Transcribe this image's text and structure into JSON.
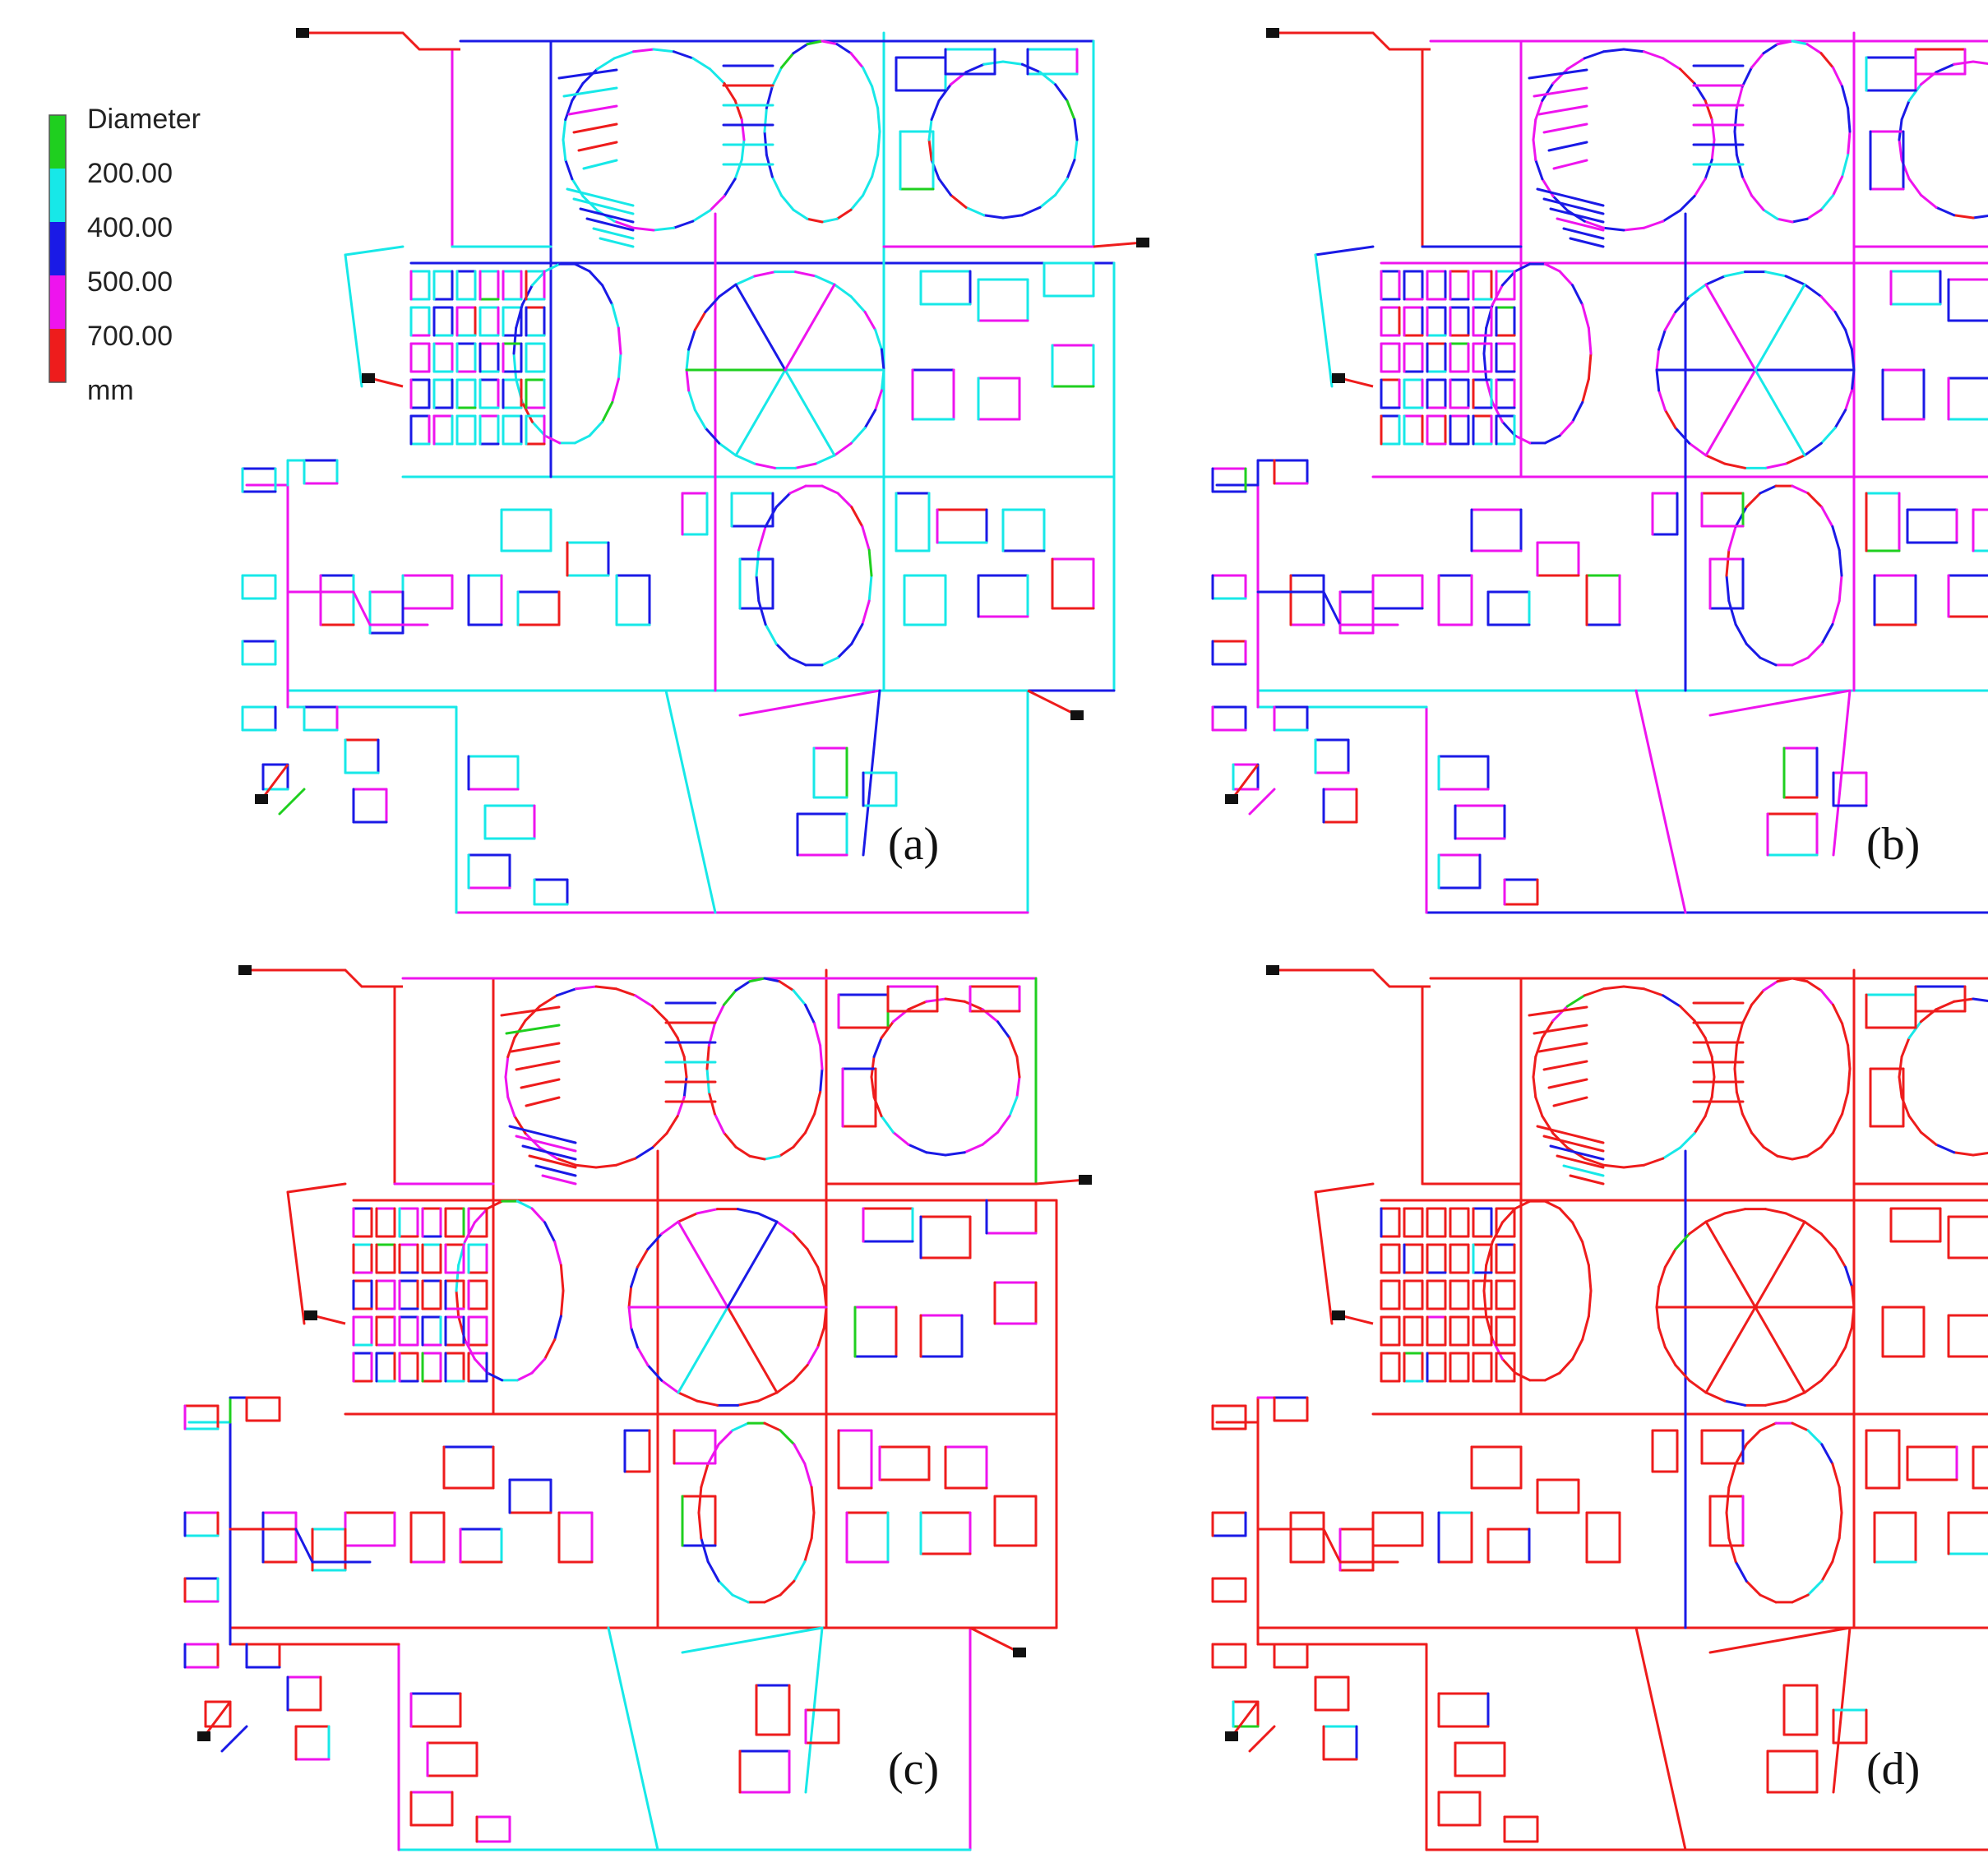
{
  "legend": {
    "title": "Diameter",
    "entries": [
      {
        "label": "200.00",
        "color": "#1fcf1f"
      },
      {
        "label": "400.00",
        "color": "#17e8e8"
      },
      {
        "label": "500.00",
        "color": "#1a1ae6"
      },
      {
        "label": "700.00",
        "color": "#ee14ee"
      },
      {
        "label": "",
        "color": "#ee1c1c"
      }
    ],
    "unit": "mm"
  },
  "panels": [
    {
      "id": "a",
      "label": "(a)",
      "mix": [
        0.03,
        0.45,
        0.28,
        0.2,
        0.04
      ]
    },
    {
      "id": "b",
      "label": "(b)",
      "mix": [
        0.02,
        0.12,
        0.36,
        0.42,
        0.08
      ]
    },
    {
      "id": "c",
      "label": "(c)",
      "mix": [
        0.02,
        0.08,
        0.18,
        0.28,
        0.44
      ]
    },
    {
      "id": "d",
      "label": "(d)",
      "mix": [
        0.01,
        0.04,
        0.04,
        0.03,
        0.88
      ]
    }
  ],
  "colors": {
    "background": "#ffffff",
    "reservoir": "#111111"
  }
}
